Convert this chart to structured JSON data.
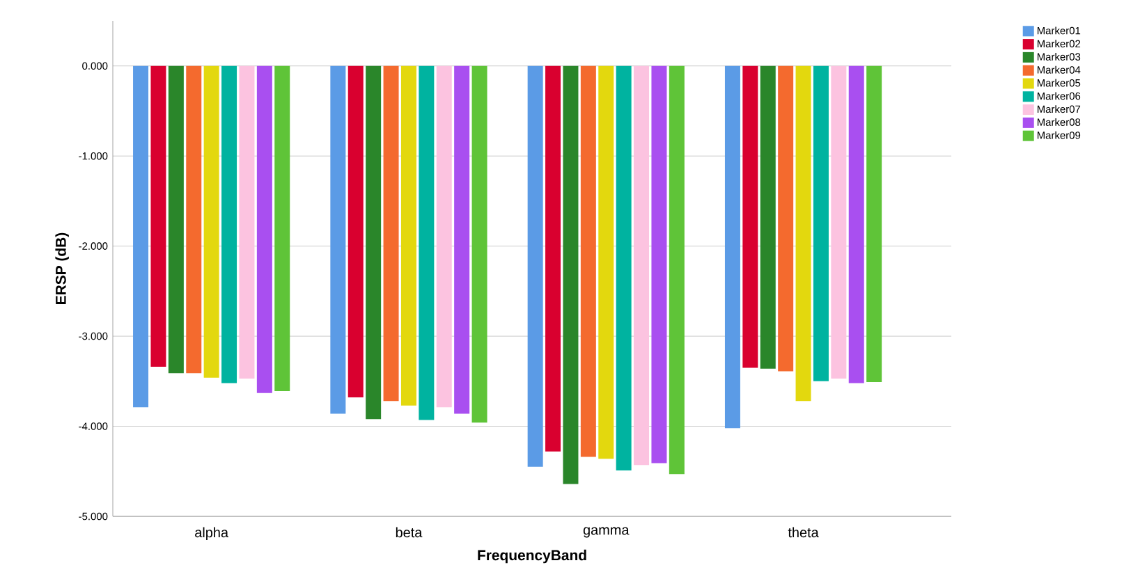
{
  "chart_data": {
    "type": "bar",
    "xlabel": "FrequencyBand",
    "ylabel": "ERSP (dB)",
    "categories": [
      "alpha",
      "beta",
      "gamma",
      "theta"
    ],
    "ylim": [
      -5,
      0.5
    ],
    "yticks": [
      {
        "value": -5,
        "label": "-5.000"
      },
      {
        "value": -4,
        "label": "-4.000"
      },
      {
        "value": -3,
        "label": "-3.000"
      },
      {
        "value": -2,
        "label": "-2.000"
      },
      {
        "value": -1,
        "label": "-1.000"
      },
      {
        "value": 0,
        "label": "0.000"
      }
    ],
    "grid": "y",
    "legend": "right",
    "series": [
      {
        "name": "Marker01",
        "color": "#5b9be6",
        "values": [
          -3.79,
          -3.86,
          -4.45,
          -4.02
        ]
      },
      {
        "name": "Marker02",
        "color": "#d9002f",
        "values": [
          -3.34,
          -3.68,
          -4.28,
          -3.35
        ]
      },
      {
        "name": "Marker03",
        "color": "#2a862a",
        "values": [
          -3.41,
          -3.92,
          -4.64,
          -3.36
        ]
      },
      {
        "name": "Marker04",
        "color": "#f46a2e",
        "values": [
          -3.41,
          -3.72,
          -4.34,
          -3.39
        ]
      },
      {
        "name": "Marker05",
        "color": "#e3d80e",
        "values": [
          -3.46,
          -3.77,
          -4.36,
          -3.72
        ]
      },
      {
        "name": "Marker06",
        "color": "#00b3a0",
        "values": [
          -3.52,
          -3.93,
          -4.49,
          -3.5
        ]
      },
      {
        "name": "Marker07",
        "color": "#fcc3e0",
        "values": [
          -3.47,
          -3.79,
          -4.43,
          -3.47
        ]
      },
      {
        "name": "Marker08",
        "color": "#a94ff0",
        "values": [
          -3.63,
          -3.86,
          -4.41,
          -3.52
        ]
      },
      {
        "name": "Marker09",
        "color": "#5fc438",
        "values": [
          -3.61,
          -3.96,
          -4.53,
          -3.51
        ]
      }
    ]
  }
}
